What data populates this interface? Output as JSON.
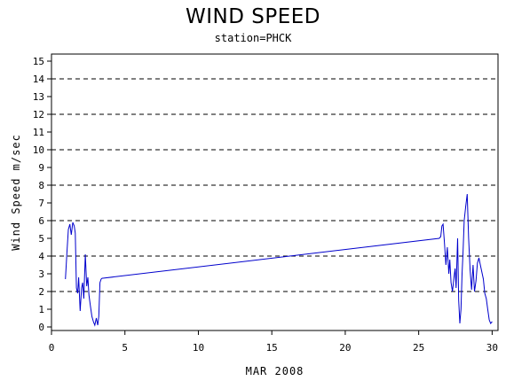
{
  "chart_data": {
    "type": "line",
    "title": "WIND SPEED",
    "subtitle": "station=PHCK",
    "xlabel": "MAR 2008",
    "ylabel": "Wind Speed m/sec",
    "xlim": [
      0,
      30.4
    ],
    "ylim": [
      -0.2,
      15.4
    ],
    "xticks": [
      0,
      5,
      10,
      15,
      20,
      25,
      30
    ],
    "yticks": [
      0,
      1,
      2,
      3,
      4,
      5,
      6,
      7,
      8,
      9,
      10,
      11,
      12,
      13,
      14,
      15
    ],
    "grid_lines_y": [
      2,
      4,
      6,
      8,
      10,
      12,
      14
    ],
    "series_color": "#0000cc",
    "series": [
      {
        "x": [
          0.95,
          1.05,
          1.15,
          1.25,
          1.35,
          1.45,
          1.55,
          1.62,
          1.7,
          1.78,
          1.85,
          1.95,
          2.05,
          2.12,
          2.2,
          2.3,
          2.4,
          2.48,
          2.55,
          2.65,
          2.75,
          2.85,
          2.95,
          3.05,
          3.15,
          3.22,
          3.3,
          3.38,
          3.45,
          3.5,
          26.4,
          26.5,
          26.58,
          26.66,
          26.75,
          26.85,
          26.95,
          27.05,
          27.12,
          27.2,
          27.3,
          27.4,
          27.48,
          27.55,
          27.65,
          27.72,
          27.8,
          27.88,
          27.95,
          28.02,
          28.1,
          28.2,
          28.3,
          28.4,
          28.5,
          28.6,
          28.7,
          28.8,
          28.9,
          29.0,
          29.1,
          29.2,
          29.3,
          29.4,
          29.5,
          29.6,
          29.7,
          29.8,
          29.9,
          30.0
        ],
        "y": [
          2.7,
          4.2,
          5.5,
          5.8,
          5.2,
          5.9,
          5.7,
          5.3,
          2.2,
          1.9,
          2.8,
          0.9,
          2.2,
          2.5,
          1.6,
          4.1,
          2.3,
          2.8,
          1.8,
          1.2,
          0.6,
          0.3,
          0.1,
          0.5,
          0.1,
          0.6,
          2.5,
          2.7,
          2.75,
          2.75,
          5.0,
          5.1,
          5.7,
          5.8,
          4.8,
          3.5,
          4.5,
          3.0,
          3.8,
          2.5,
          2.0,
          2.8,
          3.3,
          2.2,
          5.0,
          1.5,
          0.2,
          1.0,
          3.0,
          4.2,
          6.0,
          6.8,
          7.5,
          5.0,
          3.2,
          2.1,
          3.5,
          2.0,
          2.6,
          3.6,
          3.9,
          3.5,
          3.1,
          2.7,
          1.9,
          1.6,
          1.0,
          0.4,
          0.2,
          0.3
        ]
      }
    ]
  }
}
